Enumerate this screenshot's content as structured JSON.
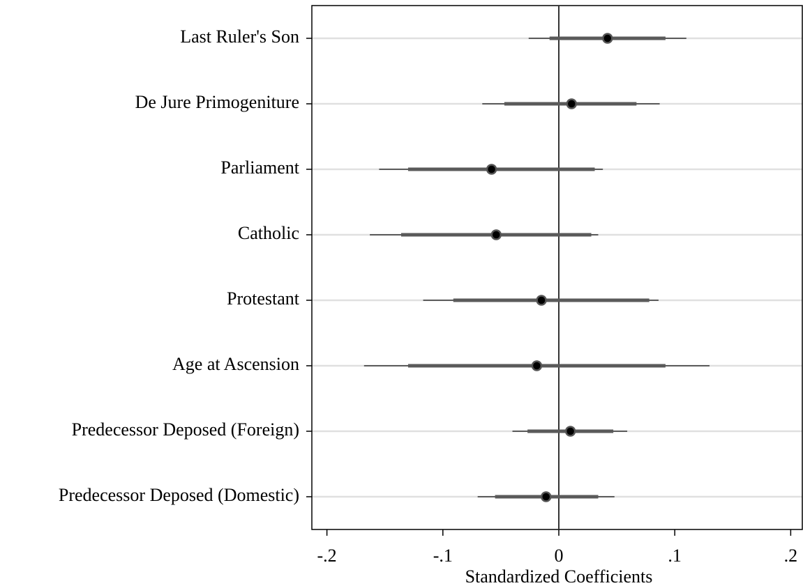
{
  "chart_data": {
    "type": "coefplot",
    "x_label": "Standardized Coefficients",
    "categories": [
      "Last Ruler's Son",
      "De Jure Primogeniture",
      "Parliament",
      "Catholic",
      "Protestant",
      "Age at Ascension",
      "Predecessor Deposed (Foreign)",
      "Predecessor Deposed (Domestic)"
    ],
    "values": [
      0.042,
      0.011,
      -0.058,
      -0.054,
      -0.015,
      -0.019,
      0.01,
      -0.011
    ],
    "ci_inner_low": [
      -0.008,
      -0.047,
      -0.13,
      -0.136,
      -0.091,
      -0.13,
      -0.027,
      -0.055
    ],
    "ci_inner_high": [
      0.092,
      0.067,
      0.031,
      0.028,
      0.078,
      0.092,
      0.047,
      0.034
    ],
    "ci_outer_low": [
      -0.026,
      -0.066,
      -0.155,
      -0.163,
      -0.117,
      -0.168,
      -0.04,
      -0.07
    ],
    "ci_outer_high": [
      0.11,
      0.087,
      0.038,
      0.034,
      0.086,
      0.13,
      0.059,
      0.048
    ],
    "xlim": [
      -0.213,
      0.21
    ],
    "xticks": [
      {
        "value": -0.2,
        "label": "-.2"
      },
      {
        "value": -0.1,
        "label": "-.1"
      },
      0,
      {
        "value": 0.1,
        "label": ".1"
      },
      {
        "value": 0.2,
        "label": ".2"
      }
    ],
    "reference_line": 0,
    "grid": true,
    "marker_color": "#000000",
    "marker_edge_color": "#555555",
    "ci_color": "#5a5a5a",
    "grid_color": "#e0e0e0"
  }
}
